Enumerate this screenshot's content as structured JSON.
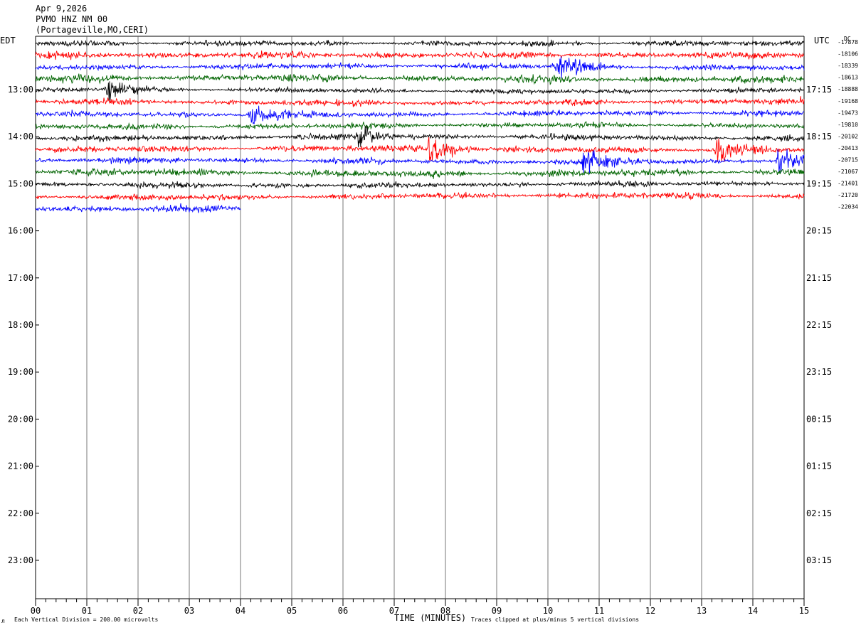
{
  "header": {
    "date": "Apr 9,2026",
    "station": "PVMO HNZ NM 00",
    "location": "(Portageville,MO,CERI)",
    "left_zone": "EDT",
    "right_zone": "UTC",
    "dc_heading": "DC"
  },
  "footer": {
    "scale_note": "Each Vertical Division =  200.00 microvolts",
    "axis_title": "TIME (MINUTES)",
    "clip_note": "Traces clipped at plus/minus 5 vertical divisions",
    "corner_mark": "л"
  },
  "chart_data": {
    "type": "line",
    "title": "Apr 9,2026 PVMO HNZ NM 00 (Portageville,MO,CERI)",
    "xlabel": "TIME (MINUTES)",
    "xlim": [
      0,
      15
    ],
    "x_ticks": [
      "00",
      "01",
      "02",
      "03",
      "04",
      "05",
      "06",
      "07",
      "08",
      "09",
      "10",
      "11",
      "12",
      "13",
      "14",
      "15"
    ],
    "left_time_labels": [
      "13:00",
      "14:00",
      "15:00",
      "16:00",
      "17:00",
      "18:00",
      "19:00",
      "20:00",
      "21:00",
      "22:00",
      "23:00"
    ],
    "right_time_labels": [
      "17:15",
      "18:15",
      "19:15",
      "20:15",
      "21:15",
      "22:15",
      "23:15",
      "00:15",
      "01:15",
      "02:15",
      "03:15"
    ],
    "dc_offsets": [
      "-17878",
      "-18106",
      "-18339",
      "-18613",
      "-18888",
      "-19168",
      "-19473",
      "-19810",
      "-20102",
      "-20413",
      "-20715",
      "-21067",
      "-21401",
      "-21720",
      "-22034"
    ],
    "trace_colors": [
      "#000000",
      "#ff0000",
      "#0000ff",
      "#006400"
    ],
    "traces_recorded": 15,
    "last_trace_end_minute": 4.0,
    "grid": true,
    "events": [
      {
        "trace": 4,
        "minute": 1.4,
        "amplitude": 3.5
      },
      {
        "trace": 6,
        "minute": 4.2,
        "amplitude": 4.0
      },
      {
        "trace": 8,
        "minute": 6.3,
        "amplitude": 3.0
      },
      {
        "trace": 9,
        "minute": 7.7,
        "amplitude": 5.0
      },
      {
        "trace": 2,
        "minute": 10.2,
        "amplitude": 4.5
      },
      {
        "trace": 10,
        "minute": 10.7,
        "amplitude": 4.0
      },
      {
        "trace": 9,
        "minute": 13.3,
        "amplitude": 5.0
      },
      {
        "trace": 10,
        "minute": 14.5,
        "amplitude": 5.0
      }
    ]
  }
}
